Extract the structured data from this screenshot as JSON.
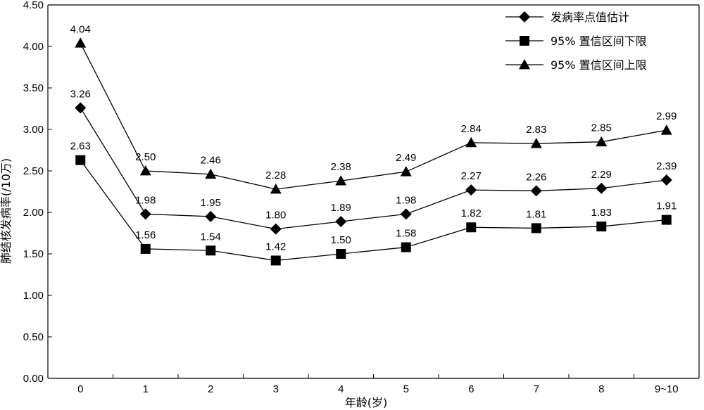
{
  "chart_data": {
    "type": "line",
    "categories": [
      "0",
      "1",
      "2",
      "3",
      "4",
      "5",
      "6",
      "7",
      "8",
      "9~10"
    ],
    "xlabel": "年龄(岁)",
    "ylabel": "肺结核发病率(/10万)",
    "ylim": [
      0,
      4.5
    ],
    "yticks": [
      "0.00",
      "0.50",
      "1.00",
      "1.50",
      "2.00",
      "2.50",
      "3.00",
      "3.50",
      "4.00",
      "4.50"
    ],
    "grid": false,
    "legend_position": "top-right",
    "series": [
      {
        "name": "发病率点值估计",
        "marker": "diamond",
        "values": [
          3.26,
          1.98,
          1.95,
          1.8,
          1.89,
          1.98,
          2.27,
          2.26,
          2.29,
          2.39
        ],
        "labels": [
          "3.26",
          "1.98",
          "1.95",
          "1.80",
          "1.89",
          "1.98",
          "2.27",
          "2.26",
          "2.29",
          "2.39"
        ]
      },
      {
        "name": "95% 置信区间下限",
        "marker": "square",
        "values": [
          2.63,
          1.56,
          1.54,
          1.42,
          1.5,
          1.58,
          1.82,
          1.81,
          1.83,
          1.91
        ],
        "labels": [
          "2.63",
          "1.56",
          "1.54",
          "1.42",
          "1.50",
          "1.58",
          "1.82",
          "1.81",
          "1.83",
          "1.91"
        ]
      },
      {
        "name": "95% 置信区间上限",
        "marker": "triangle",
        "values": [
          4.04,
          2.5,
          2.46,
          2.28,
          2.38,
          2.49,
          2.84,
          2.83,
          2.85,
          2.99
        ],
        "labels": [
          "4.04",
          "2.50",
          "2.46",
          "2.28",
          "2.38",
          "2.49",
          "2.84",
          "2.83",
          "2.85",
          "2.99"
        ]
      }
    ],
    "colors": {
      "line": "#000000",
      "marker": "#000000",
      "background": "#ffffff"
    }
  }
}
